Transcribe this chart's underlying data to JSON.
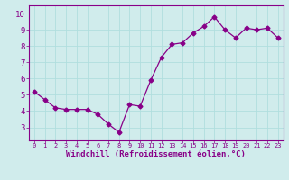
{
  "x": [
    0,
    1,
    2,
    3,
    4,
    5,
    6,
    7,
    8,
    9,
    10,
    11,
    12,
    13,
    14,
    15,
    16,
    17,
    18,
    19,
    20,
    21,
    22,
    23
  ],
  "y": [
    5.2,
    4.7,
    4.2,
    4.1,
    4.1,
    4.1,
    3.8,
    3.2,
    2.7,
    4.4,
    4.3,
    5.9,
    7.3,
    8.1,
    8.2,
    8.8,
    9.2,
    9.8,
    9.0,
    8.5,
    9.1,
    9.0,
    9.1,
    8.5
  ],
  "line_color": "#880088",
  "marker": "D",
  "marker_size": 2.5,
  "line_width": 0.9,
  "xlabel": "Windchill (Refroidissement éolien,°C)",
  "xlabel_fontsize": 6.5,
  "xlim": [
    -0.5,
    23.5
  ],
  "ylim": [
    2.2,
    10.5
  ],
  "yticks": [
    3,
    4,
    5,
    6,
    7,
    8,
    9,
    10
  ],
  "xticks": [
    0,
    1,
    2,
    3,
    4,
    5,
    6,
    7,
    8,
    9,
    10,
    11,
    12,
    13,
    14,
    15,
    16,
    17,
    18,
    19,
    20,
    21,
    22,
    23
  ],
  "xtick_fontsize": 5.0,
  "ytick_fontsize": 6.5,
  "grid_color": "#b0dede",
  "bg_color": "#d0ecec",
  "spine_color": "#880088",
  "label_color": "#880088",
  "tick_color": "#880088"
}
